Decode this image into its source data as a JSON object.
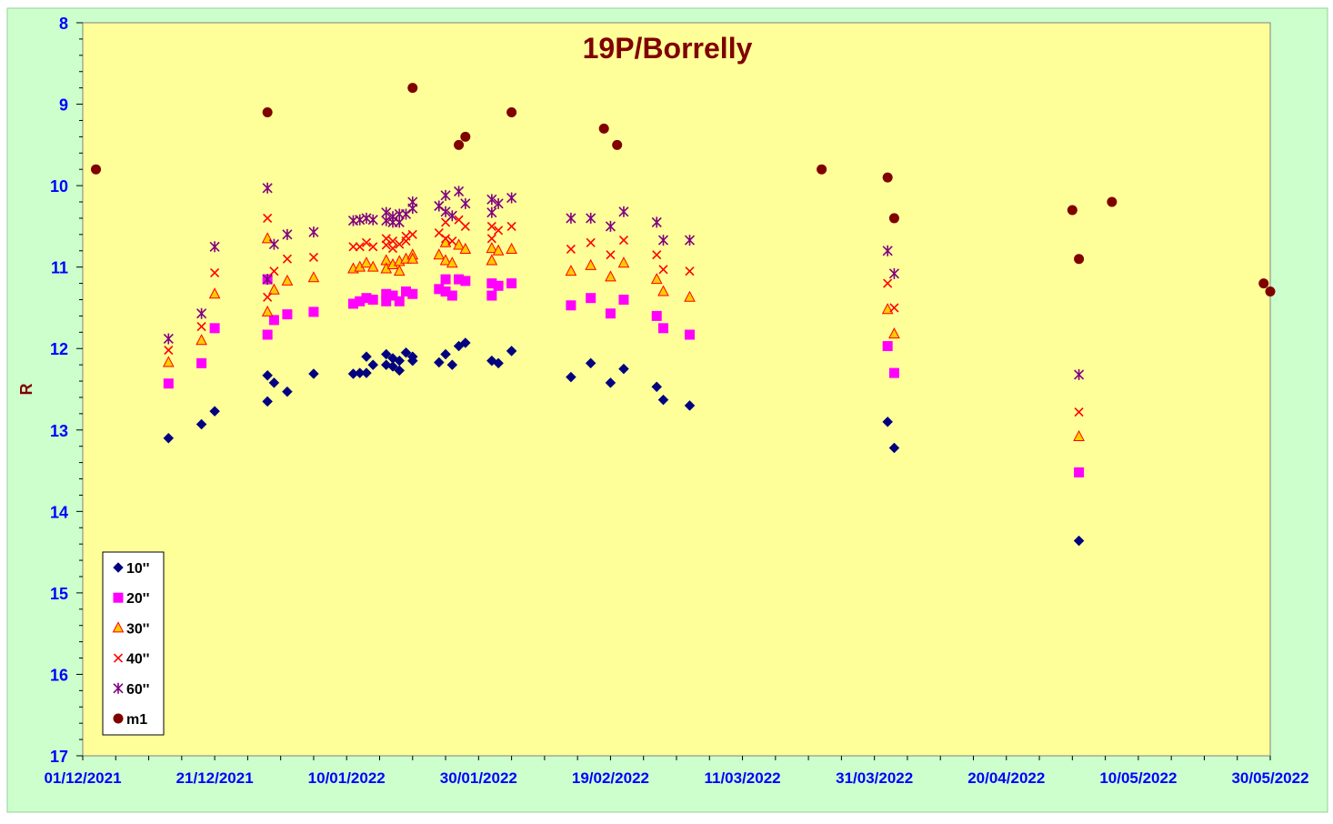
{
  "chart_data": {
    "type": "scatter",
    "title": "19P/Borrelly",
    "xlabel": "",
    "ylabel": "R",
    "x_type": "date",
    "xlim": [
      "2021-12-01",
      "2022-05-30"
    ],
    "ylim": [
      8,
      17
    ],
    "y_inverted": true,
    "x_tick_labels": [
      "01/12/2021",
      "21/12/2021",
      "10/01/2022",
      "30/01/2022",
      "19/02/2022",
      "11/03/2022",
      "31/03/2022",
      "20/04/2022",
      "10/05/2022",
      "30/05/2022"
    ],
    "x_tick_dates": [
      "2021-12-01",
      "2021-12-21",
      "2022-01-10",
      "2022-01-30",
      "2022-02-19",
      "2022-03-11",
      "2022-03-31",
      "2022-04-20",
      "2022-05-10",
      "2022-05-30"
    ],
    "y_tick_labels": [
      "8",
      "9",
      "10",
      "11",
      "12",
      "13",
      "14",
      "15",
      "16",
      "17"
    ],
    "legend_position": "bottom-left",
    "colors": {
      "background": "#ffff99",
      "frame_bg": "#ccffcc",
      "title": "#800000",
      "tick_label": "#0000ff",
      "ylabel": "#800000"
    },
    "series": [
      {
        "name": "10''",
        "marker": "diamond",
        "color": "#000080",
        "points": [
          [
            "2021-12-14",
            13.1
          ],
          [
            "2021-12-19",
            12.93
          ],
          [
            "2021-12-21",
            12.77
          ],
          [
            "2021-12-29",
            12.33
          ],
          [
            "2021-12-29",
            12.65
          ],
          [
            "2021-12-30",
            12.42
          ],
          [
            "2022-01-01",
            12.53
          ],
          [
            "2022-01-05",
            12.31
          ],
          [
            "2022-01-11",
            12.31
          ],
          [
            "2022-01-12",
            12.3
          ],
          [
            "2022-01-13",
            12.1
          ],
          [
            "2022-01-13",
            12.3
          ],
          [
            "2022-01-14",
            12.2
          ],
          [
            "2022-01-16",
            12.07
          ],
          [
            "2022-01-16",
            12.2
          ],
          [
            "2022-01-17",
            12.12
          ],
          [
            "2022-01-17",
            12.22
          ],
          [
            "2022-01-18",
            12.27
          ],
          [
            "2022-01-18",
            12.15
          ],
          [
            "2022-01-19",
            12.05
          ],
          [
            "2022-01-20",
            12.1
          ],
          [
            "2022-01-20",
            12.15
          ],
          [
            "2022-01-24",
            12.17
          ],
          [
            "2022-01-25",
            12.07
          ],
          [
            "2022-01-26",
            12.2
          ],
          [
            "2022-01-27",
            11.97
          ],
          [
            "2022-01-28",
            11.93
          ],
          [
            "2022-02-01",
            12.15
          ],
          [
            "2022-02-02",
            12.18
          ],
          [
            "2022-02-04",
            12.03
          ],
          [
            "2022-02-13",
            12.35
          ],
          [
            "2022-02-16",
            12.18
          ],
          [
            "2022-02-19",
            12.42
          ],
          [
            "2022-02-21",
            12.25
          ],
          [
            "2022-02-26",
            12.47
          ],
          [
            "2022-02-27",
            12.63
          ],
          [
            "2022-03-03",
            12.7
          ],
          [
            "2022-04-02",
            12.9
          ],
          [
            "2022-04-03",
            13.22
          ],
          [
            "2022-05-01",
            14.36
          ]
        ]
      },
      {
        "name": "20''",
        "marker": "square",
        "color": "#ff00ff",
        "points": [
          [
            "2021-12-14",
            12.43
          ],
          [
            "2021-12-19",
            12.18
          ],
          [
            "2021-12-21",
            11.75
          ],
          [
            "2021-12-29",
            11.83
          ],
          [
            "2021-12-29",
            11.15
          ],
          [
            "2021-12-30",
            11.65
          ],
          [
            "2022-01-01",
            11.58
          ],
          [
            "2022-01-05",
            11.55
          ],
          [
            "2022-01-11",
            11.45
          ],
          [
            "2022-01-12",
            11.42
          ],
          [
            "2022-01-13",
            11.38
          ],
          [
            "2022-01-14",
            11.4
          ],
          [
            "2022-01-16",
            11.33
          ],
          [
            "2022-01-16",
            11.42
          ],
          [
            "2022-01-17",
            11.35
          ],
          [
            "2022-01-18",
            11.42
          ],
          [
            "2022-01-19",
            11.3
          ],
          [
            "2022-01-20",
            11.33
          ],
          [
            "2022-01-24",
            11.27
          ],
          [
            "2022-01-25",
            11.3
          ],
          [
            "2022-01-25",
            11.15
          ],
          [
            "2022-01-26",
            11.35
          ],
          [
            "2022-01-27",
            11.15
          ],
          [
            "2022-01-28",
            11.17
          ],
          [
            "2022-02-01",
            11.2
          ],
          [
            "2022-02-01",
            11.35
          ],
          [
            "2022-02-02",
            11.23
          ],
          [
            "2022-02-04",
            11.2
          ],
          [
            "2022-02-13",
            11.47
          ],
          [
            "2022-02-16",
            11.38
          ],
          [
            "2022-02-19",
            11.57
          ],
          [
            "2022-02-21",
            11.4
          ],
          [
            "2022-02-26",
            11.6
          ],
          [
            "2022-02-27",
            11.75
          ],
          [
            "2022-03-03",
            11.83
          ],
          [
            "2022-04-02",
            11.97
          ],
          [
            "2022-04-03",
            12.3
          ],
          [
            "2022-05-01",
            13.52
          ]
        ]
      },
      {
        "name": "30''",
        "marker": "triangle",
        "color": "#ffcc00",
        "points": [
          [
            "2021-12-14",
            12.17
          ],
          [
            "2021-12-19",
            11.9
          ],
          [
            "2021-12-21",
            11.33
          ],
          [
            "2021-12-29",
            11.55
          ],
          [
            "2021-12-29",
            10.65
          ],
          [
            "2021-12-30",
            11.28
          ],
          [
            "2022-01-01",
            11.17
          ],
          [
            "2022-01-05",
            11.13
          ],
          [
            "2022-01-11",
            11.02
          ],
          [
            "2022-01-12",
            11.0
          ],
          [
            "2022-01-13",
            10.95
          ],
          [
            "2022-01-14",
            11.0
          ],
          [
            "2022-01-16",
            10.92
          ],
          [
            "2022-01-16",
            11.02
          ],
          [
            "2022-01-17",
            10.97
          ],
          [
            "2022-01-18",
            11.05
          ],
          [
            "2022-01-18",
            10.93
          ],
          [
            "2022-01-19",
            10.9
          ],
          [
            "2022-01-20",
            10.85
          ],
          [
            "2022-01-20",
            10.9
          ],
          [
            "2022-01-24",
            10.85
          ],
          [
            "2022-01-25",
            10.92
          ],
          [
            "2022-01-25",
            10.7
          ],
          [
            "2022-01-26",
            10.95
          ],
          [
            "2022-01-27",
            10.73
          ],
          [
            "2022-01-28",
            10.78
          ],
          [
            "2022-02-01",
            10.92
          ],
          [
            "2022-02-01",
            10.77
          ],
          [
            "2022-02-02",
            10.8
          ],
          [
            "2022-02-04",
            10.78
          ],
          [
            "2022-02-13",
            11.05
          ],
          [
            "2022-02-16",
            10.98
          ],
          [
            "2022-02-19",
            11.12
          ],
          [
            "2022-02-21",
            10.95
          ],
          [
            "2022-02-26",
            11.15
          ],
          [
            "2022-02-27",
            11.3
          ],
          [
            "2022-03-03",
            11.37
          ],
          [
            "2022-04-02",
            11.52
          ],
          [
            "2022-04-03",
            11.82
          ],
          [
            "2022-05-01",
            13.08
          ]
        ]
      },
      {
        "name": "40''",
        "marker": "x",
        "color": "#ff0000",
        "points": [
          [
            "2021-12-14",
            12.02
          ],
          [
            "2021-12-19",
            11.73
          ],
          [
            "2021-12-21",
            11.07
          ],
          [
            "2021-12-29",
            11.37
          ],
          [
            "2021-12-29",
            10.4
          ],
          [
            "2021-12-30",
            11.05
          ],
          [
            "2022-01-01",
            10.9
          ],
          [
            "2022-01-05",
            10.88
          ],
          [
            "2022-01-11",
            10.75
          ],
          [
            "2022-01-12",
            10.75
          ],
          [
            "2022-01-13",
            10.7
          ],
          [
            "2022-01-14",
            10.75
          ],
          [
            "2022-01-16",
            10.65
          ],
          [
            "2022-01-16",
            10.73
          ],
          [
            "2022-01-17",
            10.68
          ],
          [
            "2022-01-17",
            10.77
          ],
          [
            "2022-01-18",
            10.72
          ],
          [
            "2022-01-19",
            10.62
          ],
          [
            "2022-01-19",
            10.68
          ],
          [
            "2022-01-20",
            10.6
          ],
          [
            "2022-01-24",
            10.58
          ],
          [
            "2022-01-25",
            10.45
          ],
          [
            "2022-01-25",
            10.65
          ],
          [
            "2022-01-26",
            10.68
          ],
          [
            "2022-01-27",
            10.42
          ],
          [
            "2022-01-28",
            10.5
          ],
          [
            "2022-02-01",
            10.5
          ],
          [
            "2022-02-01",
            10.65
          ],
          [
            "2022-02-02",
            10.55
          ],
          [
            "2022-02-04",
            10.5
          ],
          [
            "2022-02-13",
            10.78
          ],
          [
            "2022-02-16",
            10.7
          ],
          [
            "2022-02-19",
            10.85
          ],
          [
            "2022-02-21",
            10.67
          ],
          [
            "2022-02-26",
            10.85
          ],
          [
            "2022-02-27",
            11.03
          ],
          [
            "2022-03-03",
            11.05
          ],
          [
            "2022-04-02",
            11.2
          ],
          [
            "2022-04-03",
            11.5
          ],
          [
            "2022-05-01",
            12.78
          ]
        ]
      },
      {
        "name": "60''",
        "marker": "star",
        "color": "#800080",
        "points": [
          [
            "2021-12-14",
            11.88
          ],
          [
            "2021-12-19",
            11.57
          ],
          [
            "2021-12-21",
            10.75
          ],
          [
            "2021-12-29",
            11.15
          ],
          [
            "2021-12-29",
            10.03
          ],
          [
            "2021-12-30",
            10.72
          ],
          [
            "2022-01-01",
            10.6
          ],
          [
            "2022-01-05",
            10.57
          ],
          [
            "2022-01-11",
            10.43
          ],
          [
            "2022-01-12",
            10.42
          ],
          [
            "2022-01-13",
            10.4
          ],
          [
            "2022-01-14",
            10.42
          ],
          [
            "2022-01-16",
            10.33
          ],
          [
            "2022-01-16",
            10.43
          ],
          [
            "2022-01-17",
            10.38
          ],
          [
            "2022-01-17",
            10.45
          ],
          [
            "2022-01-18",
            10.35
          ],
          [
            "2022-01-18",
            10.45
          ],
          [
            "2022-01-19",
            10.35
          ],
          [
            "2022-01-20",
            10.28
          ],
          [
            "2022-01-20",
            10.2
          ],
          [
            "2022-01-24",
            10.25
          ],
          [
            "2022-01-25",
            10.12
          ],
          [
            "2022-01-25",
            10.32
          ],
          [
            "2022-01-26",
            10.37
          ],
          [
            "2022-01-27",
            10.07
          ],
          [
            "2022-01-28",
            10.22
          ],
          [
            "2022-02-01",
            10.17
          ],
          [
            "2022-02-01",
            10.33
          ],
          [
            "2022-02-02",
            10.22
          ],
          [
            "2022-02-04",
            10.15
          ],
          [
            "2022-02-13",
            10.4
          ],
          [
            "2022-02-16",
            10.4
          ],
          [
            "2022-02-19",
            10.5
          ],
          [
            "2022-02-21",
            10.32
          ],
          [
            "2022-02-26",
            10.45
          ],
          [
            "2022-02-27",
            10.67
          ],
          [
            "2022-03-03",
            10.67
          ],
          [
            "2022-04-02",
            10.8
          ],
          [
            "2022-04-03",
            11.08
          ],
          [
            "2022-05-01",
            12.32
          ]
        ]
      },
      {
        "name": "m1",
        "marker": "circle",
        "color": "#800000",
        "points": [
          [
            "2021-12-03",
            9.8
          ],
          [
            "2021-12-29",
            9.1
          ],
          [
            "2022-01-20",
            8.8
          ],
          [
            "2022-01-27",
            9.5
          ],
          [
            "2022-01-28",
            9.4
          ],
          [
            "2022-02-04",
            9.1
          ],
          [
            "2022-02-18",
            9.3
          ],
          [
            "2022-02-20",
            9.5
          ],
          [
            "2022-03-23",
            9.8
          ],
          [
            "2022-04-02",
            9.9
          ],
          [
            "2022-04-03",
            10.4
          ],
          [
            "2022-04-30",
            10.3
          ],
          [
            "2022-05-01",
            10.9
          ],
          [
            "2022-05-06",
            10.2
          ],
          [
            "2022-05-29",
            11.2
          ],
          [
            "2022-05-30",
            11.3
          ]
        ]
      }
    ]
  }
}
